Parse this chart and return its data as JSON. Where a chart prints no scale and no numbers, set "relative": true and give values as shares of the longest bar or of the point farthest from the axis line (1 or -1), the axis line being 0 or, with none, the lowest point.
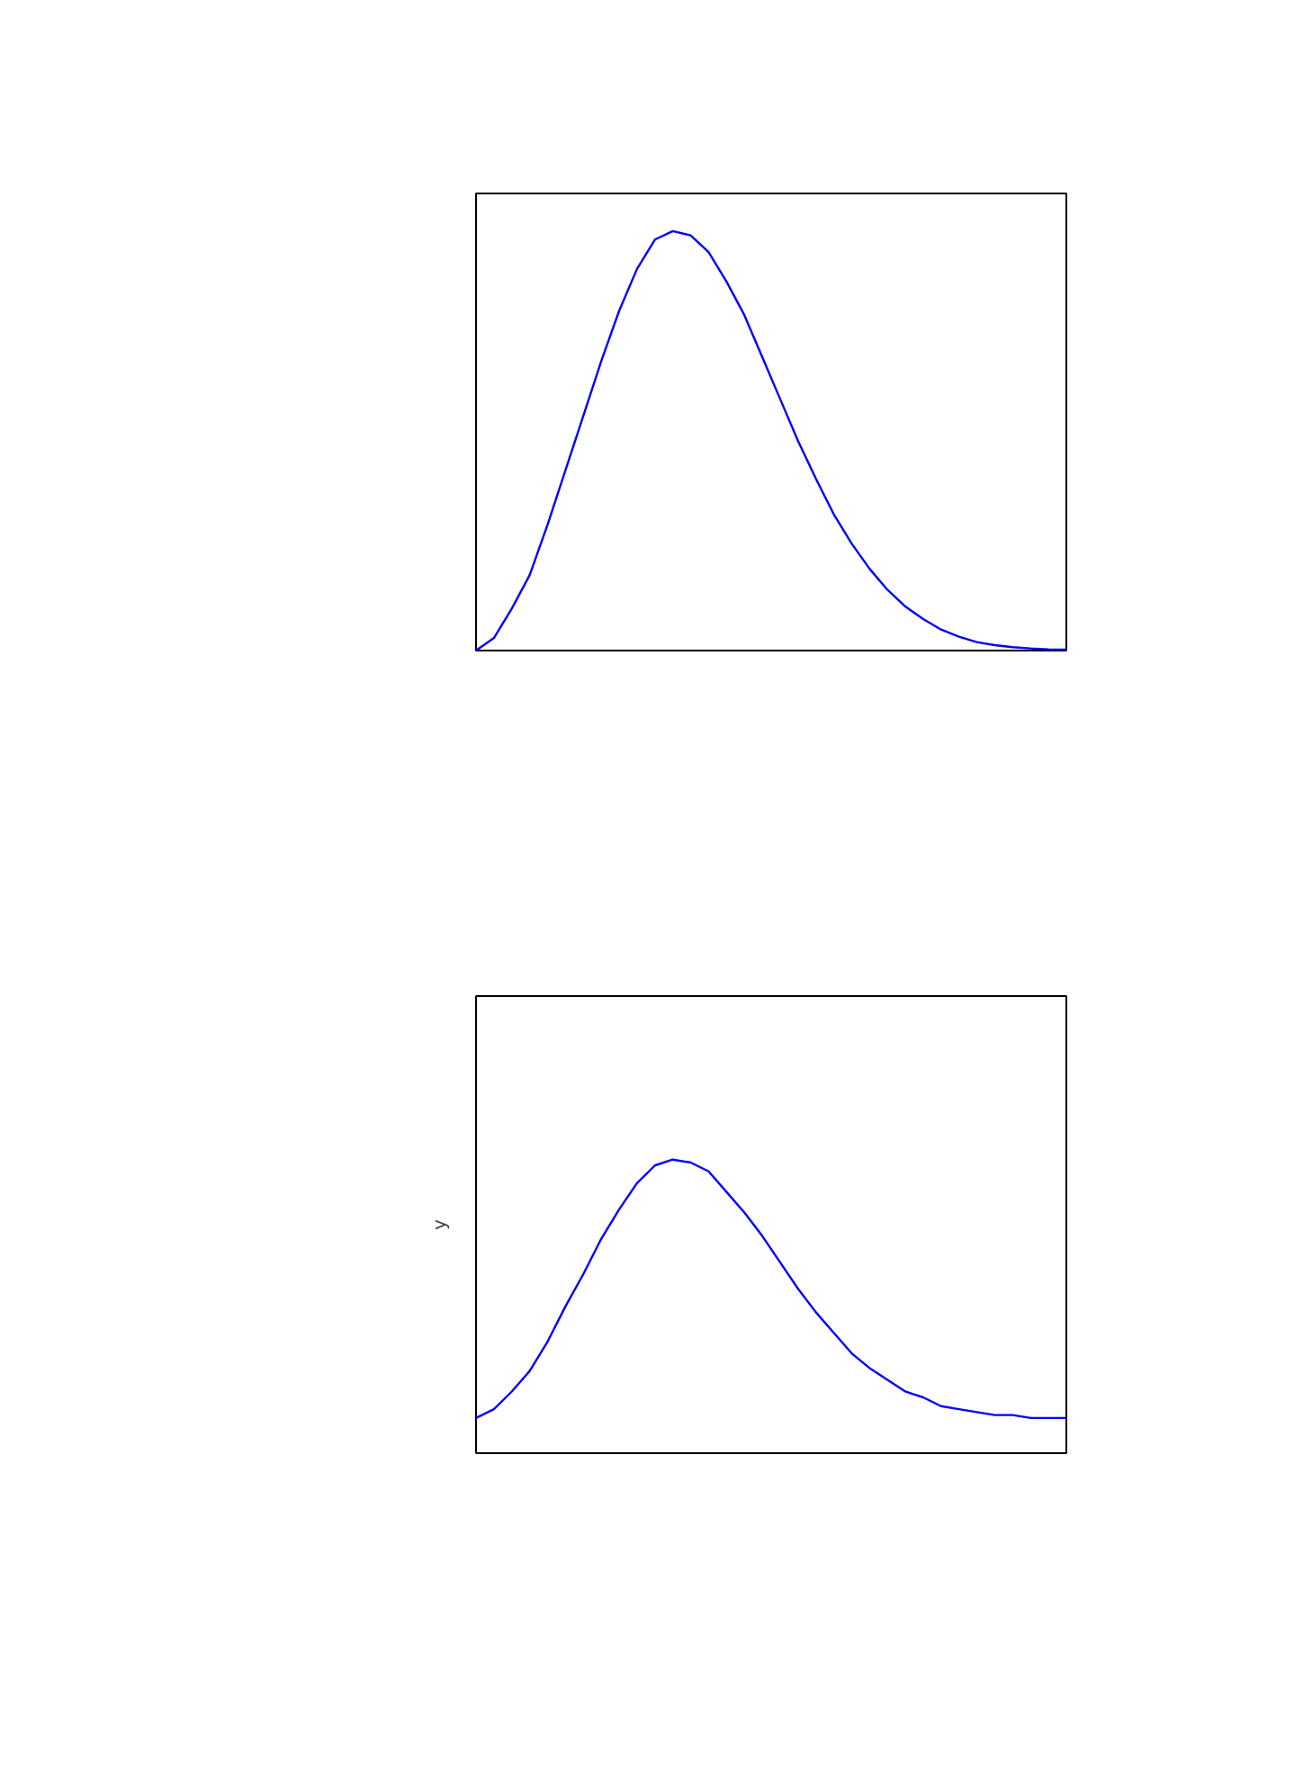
{
  "chart_data": [
    {
      "type": "line",
      "relative": true,
      "grid": false,
      "legend": false,
      "marker": "none",
      "line_style": "solid",
      "categories": [
        null,
        null,
        null,
        null,
        null,
        null,
        null,
        null,
        null,
        null,
        null,
        null,
        null,
        null,
        null,
        null,
        null,
        null,
        null,
        null,
        null,
        null,
        null,
        null,
        null,
        null,
        null,
        null,
        null,
        null,
        null,
        null,
        null,
        null
      ],
      "series": [
        {
          "color": "#0000ff",
          "values": [
            0,
            0.03,
            0.1,
            0.18,
            0.3,
            0.43,
            0.56,
            0.69,
            0.81,
            0.91,
            0.98,
            1.0,
            0.99,
            0.95,
            0.88,
            0.8,
            0.7,
            0.6,
            0.5,
            0.41,
            0.325,
            0.255,
            0.195,
            0.145,
            0.105,
            0.075,
            0.05,
            0.033,
            0.02,
            0.013,
            0.008,
            0.005,
            0.003,
            0.002
          ]
        }
      ]
    },
    {
      "type": "line",
      "relative": true,
      "grid": false,
      "legend": false,
      "marker": "none",
      "line_style": "solid",
      "ylabel": "y",
      "categories": [
        null,
        null,
        null,
        null,
        null,
        null,
        null,
        null,
        null,
        null,
        null,
        null,
        null,
        null,
        null,
        null,
        null,
        null,
        null,
        null,
        null,
        null,
        null,
        null,
        null,
        null,
        null,
        null,
        null,
        null,
        null,
        null,
        null,
        null
      ],
      "series": [
        {
          "color": "#0000ff",
          "values": [
            0.12,
            0.15,
            0.21,
            0.28,
            0.38,
            0.5,
            0.61,
            0.73,
            0.83,
            0.92,
            0.98,
            1.0,
            0.99,
            0.96,
            0.89,
            0.82,
            0.74,
            0.65,
            0.56,
            0.48,
            0.41,
            0.34,
            0.29,
            0.25,
            0.21,
            0.19,
            0.16,
            0.15,
            0.14,
            0.13,
            0.13,
            0.12,
            0.12,
            0.12
          ]
        }
      ]
    }
  ]
}
